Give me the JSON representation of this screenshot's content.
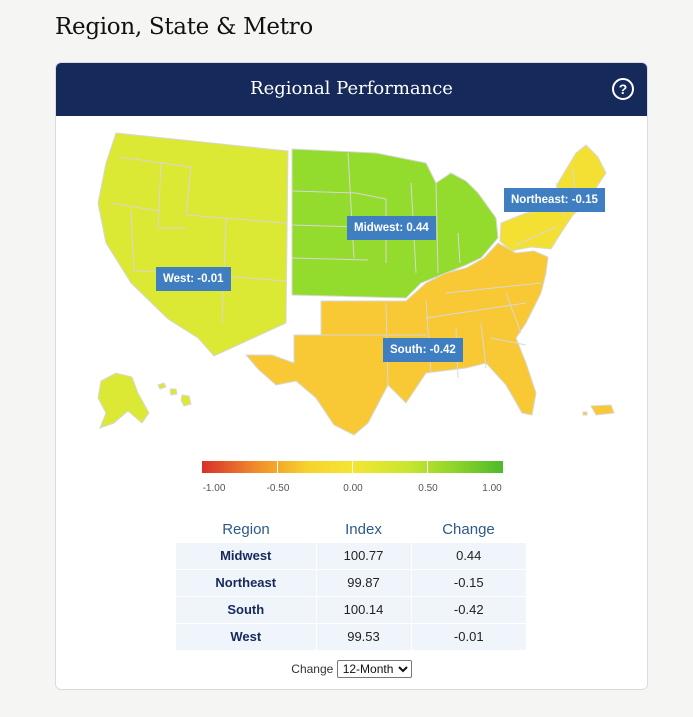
{
  "page": {
    "title": "Region, State & Metro"
  },
  "card": {
    "title": "Regional Performance",
    "help_icon": "question-circle-icon"
  },
  "map": {
    "colors": {
      "west": "#dbe834",
      "midwest": "#93db2c",
      "northeast": "#f4e033",
      "south": "#f8c935",
      "border": "#d8d8d8"
    },
    "labels": [
      {
        "region": "west",
        "text": "West: -0.01"
      },
      {
        "region": "midwest",
        "text": "Midwest: 0.44"
      },
      {
        "region": "northeast",
        "text": "Northeast: -0.15"
      },
      {
        "region": "south",
        "text": "South: -0.42"
      }
    ]
  },
  "legend": {
    "ticks": [
      "-1.00",
      "-0.50",
      "0.00",
      "0.50",
      "1.00"
    ]
  },
  "table": {
    "headers": {
      "region": "Region",
      "index": "Index",
      "change": "Change"
    },
    "rows": [
      {
        "region": "Midwest",
        "index": "100.77",
        "change": "0.44"
      },
      {
        "region": "Northeast",
        "index": "99.87",
        "change": "-0.15"
      },
      {
        "region": "South",
        "index": "100.14",
        "change": "-0.42"
      },
      {
        "region": "West",
        "index": "99.53",
        "change": "-0.01"
      }
    ]
  },
  "controls": {
    "change_label": "Change",
    "period_selected": "12-Month",
    "period_options": [
      "12-Month"
    ]
  }
}
